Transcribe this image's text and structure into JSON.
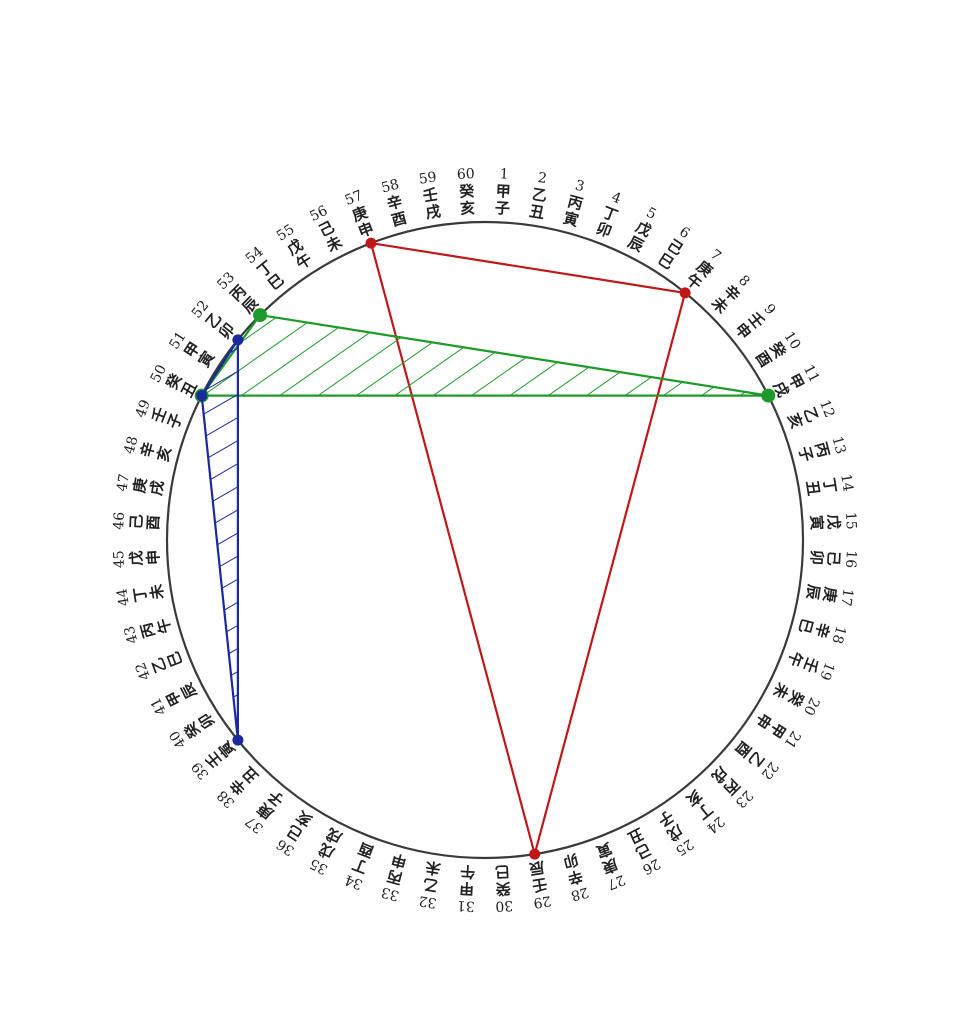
{
  "cycle": [
    {
      "n": "1",
      "gz": "甲子"
    },
    {
      "n": "2",
      "gz": "乙丑"
    },
    {
      "n": "3",
      "gz": "丙寅"
    },
    {
      "n": "4",
      "gz": "丁卯"
    },
    {
      "n": "5",
      "gz": "戊辰"
    },
    {
      "n": "6",
      "gz": "己巳"
    },
    {
      "n": "7",
      "gz": "庚午"
    },
    {
      "n": "8",
      "gz": "辛未"
    },
    {
      "n": "9",
      "gz": "壬申"
    },
    {
      "n": "10",
      "gz": "癸酉"
    },
    {
      "n": "11",
      "gz": "甲戌"
    },
    {
      "n": "12",
      "gz": "乙亥"
    },
    {
      "n": "13",
      "gz": "丙子"
    },
    {
      "n": "14",
      "gz": "丁丑"
    },
    {
      "n": "15",
      "gz": "戊寅"
    },
    {
      "n": "16",
      "gz": "己卯"
    },
    {
      "n": "17",
      "gz": "庚辰"
    },
    {
      "n": "18",
      "gz": "辛巳"
    },
    {
      "n": "19",
      "gz": "壬午"
    },
    {
      "n": "20",
      "gz": "癸未"
    },
    {
      "n": "21",
      "gz": "甲申"
    },
    {
      "n": "22",
      "gz": "乙酉"
    },
    {
      "n": "23",
      "gz": "丙戌"
    },
    {
      "n": "24",
      "gz": "丁亥"
    },
    {
      "n": "25",
      "gz": "戊子"
    },
    {
      "n": "26",
      "gz": "己丑"
    },
    {
      "n": "27",
      "gz": "庚寅"
    },
    {
      "n": "28",
      "gz": "辛卯"
    },
    {
      "n": "29",
      "gz": "壬辰"
    },
    {
      "n": "30",
      "gz": "癸巳"
    },
    {
      "n": "31",
      "gz": "甲午"
    },
    {
      "n": "32",
      "gz": "乙未"
    },
    {
      "n": "33",
      "gz": "丙申"
    },
    {
      "n": "34",
      "gz": "丁酉"
    },
    {
      "n": "35",
      "gz": "戊戌"
    },
    {
      "n": "36",
      "gz": "己亥"
    },
    {
      "n": "37",
      "gz": "庚子"
    },
    {
      "n": "38",
      "gz": "辛丑"
    },
    {
      "n": "39",
      "gz": "壬寅"
    },
    {
      "n": "40",
      "gz": "癸卯"
    },
    {
      "n": "41",
      "gz": "甲辰"
    },
    {
      "n": "42",
      "gz": "乙巳"
    },
    {
      "n": "43",
      "gz": "丙午"
    },
    {
      "n": "44",
      "gz": "丁未"
    },
    {
      "n": "45",
      "gz": "戊申"
    },
    {
      "n": "46",
      "gz": "己酉"
    },
    {
      "n": "47",
      "gz": "庚戌"
    },
    {
      "n": "48",
      "gz": "辛亥"
    },
    {
      "n": "49",
      "gz": "壬子"
    },
    {
      "n": "50",
      "gz": "癸丑"
    },
    {
      "n": "51",
      "gz": "甲寅"
    },
    {
      "n": "52",
      "gz": "乙卯"
    },
    {
      "n": "53",
      "gz": "丙辰"
    },
    {
      "n": "54",
      "gz": "丁巳"
    },
    {
      "n": "55",
      "gz": "戊午"
    },
    {
      "n": "56",
      "gz": "己未"
    },
    {
      "n": "57",
      "gz": "庚申"
    },
    {
      "n": "58",
      "gz": "辛酉"
    },
    {
      "n": "59",
      "gz": "壬戌"
    },
    {
      "n": "60",
      "gz": "癸亥"
    }
  ],
  "triangles": [
    {
      "name": "red-triangle",
      "vertices": [
        7,
        29,
        57
      ],
      "color": "#c01818",
      "hatched": false
    },
    {
      "name": "green-triangle",
      "vertices": [
        11,
        50,
        53
      ],
      "color": "#1e9a2a",
      "hatched": true
    },
    {
      "name": "blue-triangle",
      "vertices": [
        39,
        50,
        52
      ],
      "color": "#1a2a9c",
      "hatched": true
    }
  ]
}
